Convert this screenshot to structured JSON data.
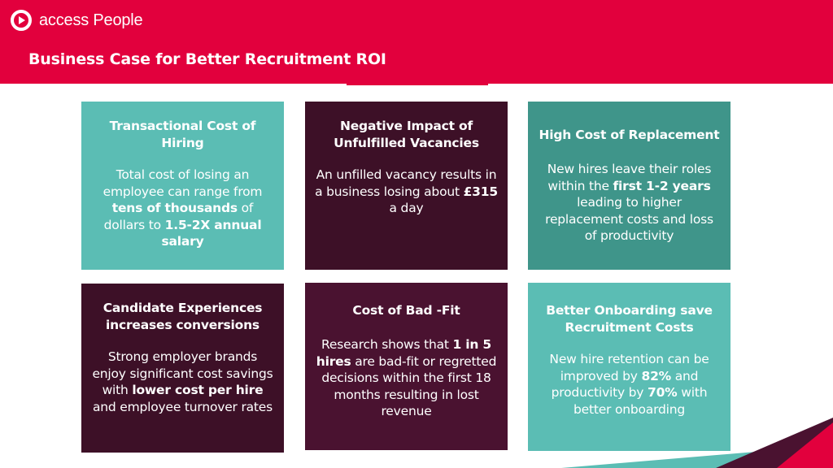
{
  "brand": {
    "name": "access People",
    "primary_color": "#e2003d"
  },
  "slide": {
    "title": "Business Case for Better Recruitment ROI"
  },
  "cards": [
    {
      "title": "Transactional Cost of Hiring",
      "text_1": "Total cost of losing an employee can range from ",
      "bold_1": "tens of thousands",
      "text_2": " of dollars to ",
      "bold_2": "1.5-2X annual salary",
      "text_3": ""
    },
    {
      "title": "Negative Impact of Unfulfilled Vacancies",
      "text_1": "An unfilled vacancy results in a business losing about ",
      "bold_1": "£315",
      "text_2": " a day"
    },
    {
      "title": "High Cost of Replacement",
      "text_1": "New hires leave their roles within the ",
      "bold_1": "first 1-2 years",
      "text_2": " leading to higher replacement costs and loss of productivity"
    },
    {
      "title": "Candidate Experiences increases conversions",
      "text_1": "Strong employer brands enjoy significant cost savings with ",
      "bold_1": "lower cost per hire",
      "text_2": " and employee turnover rates"
    },
    {
      "title": "Cost of Bad -Fit",
      "text_1": "Research shows that ",
      "bold_1": "1 in 5 hires",
      "text_2": " are bad-fit or regretted decisions within the first 18 months resulting in lost revenue"
    },
    {
      "title": "Better Onboarding save Recruitment Costs",
      "text_1": "New hire retention can be improved by ",
      "bold_1": "82%",
      "text_2": " and productivity by ",
      "bold_2": "70%",
      "text_3": " with better onboarding"
    }
  ]
}
